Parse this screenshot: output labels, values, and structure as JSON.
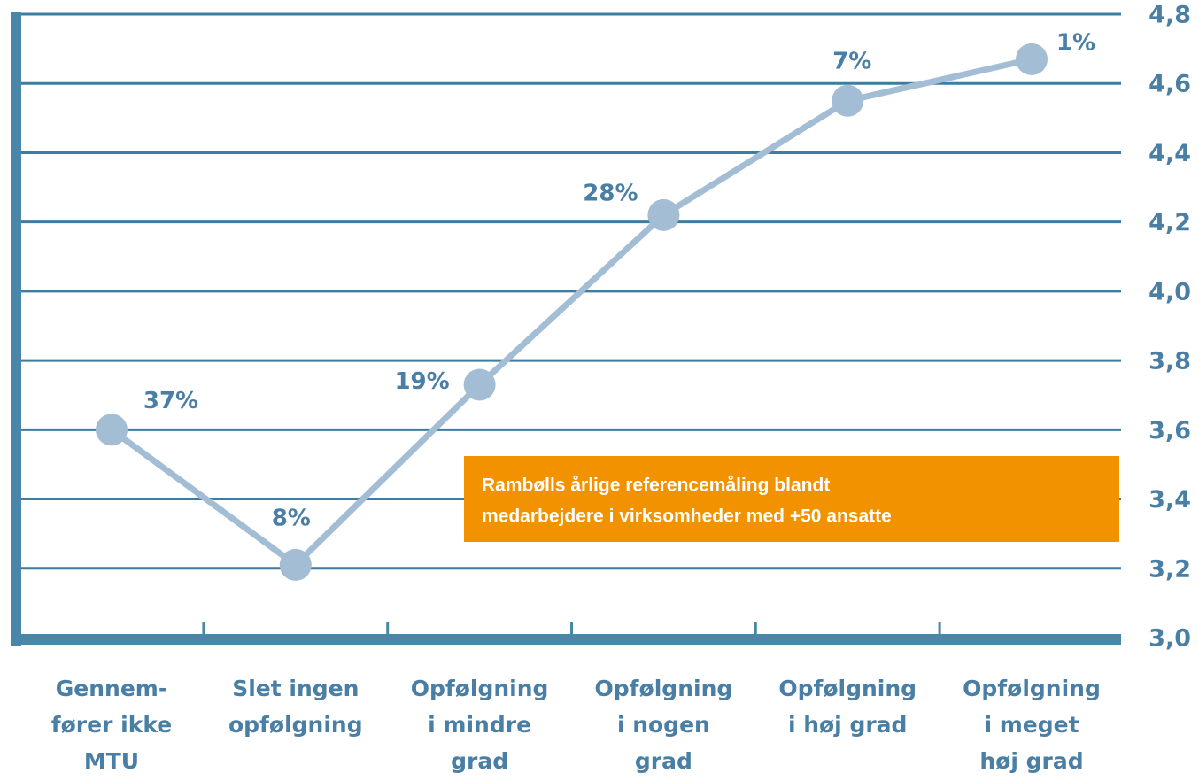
{
  "chart_data": {
    "type": "line",
    "categories": [
      [
        "Gennem-",
        "fører ikke",
        "MTU"
      ],
      [
        "Slet ingen",
        "opfølgning"
      ],
      [
        "Opfølgning",
        "i mindre",
        "grad"
      ],
      [
        "Opfølgning",
        "i nogen",
        "grad"
      ],
      [
        "Opfølgning",
        "i høj grad"
      ],
      [
        "Opfølgning",
        "i meget",
        "høj grad"
      ]
    ],
    "series": [
      {
        "color": "#a3bdd4",
        "values": [
          3.6,
          3.21,
          3.73,
          4.22,
          4.55,
          4.67
        ]
      }
    ],
    "share_labels": [
      "37%",
      "8%",
      "19%",
      "28%",
      "7%",
      "1%"
    ],
    "ylim": [
      3.0,
      4.8
    ],
    "yticks": [
      {
        "value": 3.0,
        "label": "3,0"
      },
      {
        "value": 3.2,
        "label": "3,2"
      },
      {
        "value": 3.4,
        "label": "3,4"
      },
      {
        "value": 3.6,
        "label": "3,6"
      },
      {
        "value": 3.8,
        "label": "3,8"
      },
      {
        "value": 4.0,
        "label": "4,0"
      },
      {
        "value": 4.2,
        "label": "4,2"
      },
      {
        "value": 4.4,
        "label": "4,4"
      },
      {
        "value": 4.6,
        "label": "4,6"
      },
      {
        "value": 4.8,
        "label": "4,8"
      }
    ],
    "grid": true,
    "annotation": [
      "Rambølls årlige referencemåling blandt",
      "medarbejdere i virksomheder med +50 ansatte"
    ]
  }
}
